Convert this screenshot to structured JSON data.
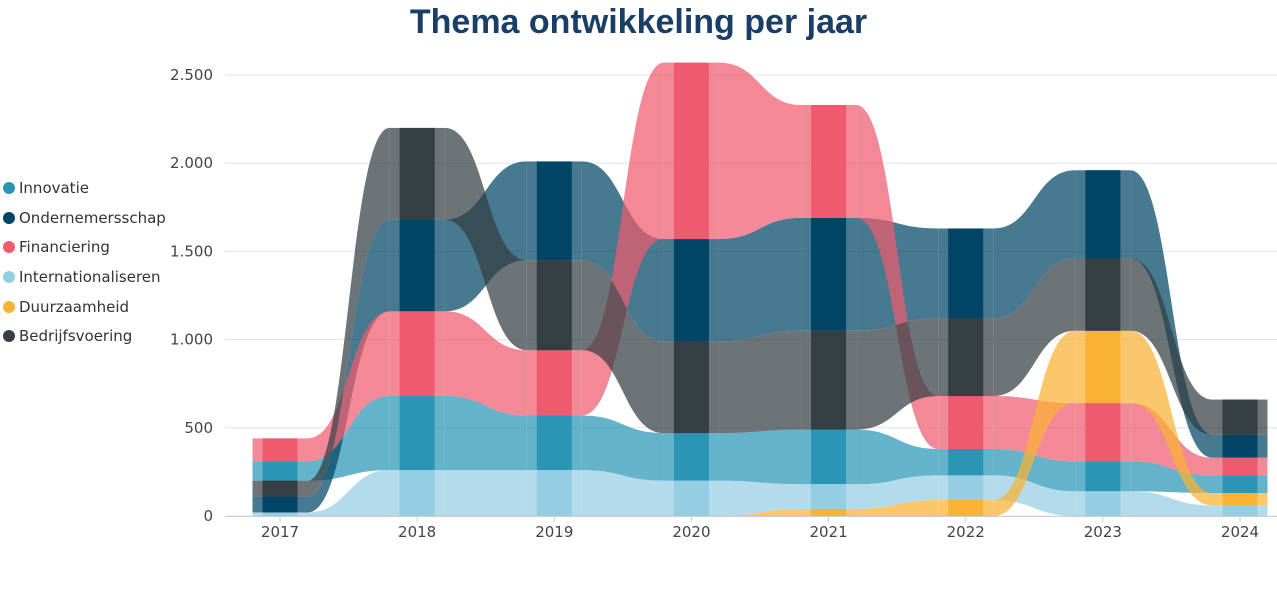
{
  "chart_data": {
    "type": "area",
    "subtype": "stacked-ribbon",
    "title": "Thema ontwikkeling per jaar",
    "xlabel": "",
    "ylabel": "",
    "categories": [
      "2017",
      "2018",
      "2019",
      "2020",
      "2021",
      "2022",
      "2023",
      "2024"
    ],
    "ylim": [
      0,
      2500
    ],
    "yticks": [
      0,
      500,
      1000,
      1500,
      2000,
      2500
    ],
    "ytick_labels": [
      "0",
      "500",
      "1.000",
      "1.500",
      "2.000",
      "2.500"
    ],
    "legend_position": "left",
    "series": [
      {
        "name": "Innovatie",
        "color": "#2a95b5",
        "values": [
          110,
          420,
          310,
          270,
          310,
          150,
          170,
          100
        ]
      },
      {
        "name": "Ondernemersschap",
        "color": "#004566",
        "values": [
          90,
          520,
          560,
          580,
          640,
          510,
          500,
          130
        ]
      },
      {
        "name": "Financiering",
        "color": "#ef5b6e",
        "values": [
          130,
          480,
          370,
          1000,
          640,
          300,
          330,
          100
        ]
      },
      {
        "name": "Internationaliseren",
        "color": "#95cde3",
        "values": [
          20,
          260,
          260,
          200,
          140,
          140,
          140,
          60
        ]
      },
      {
        "name": "Duurzaamheid",
        "color": "#f9b233",
        "values": [
          0,
          0,
          0,
          0,
          40,
          90,
          410,
          70
        ]
      },
      {
        "name": "Bedrijfsvoering",
        "color": "#353e42",
        "values": [
          90,
          520,
          510,
          520,
          560,
          440,
          410,
          200
        ]
      }
    ]
  }
}
